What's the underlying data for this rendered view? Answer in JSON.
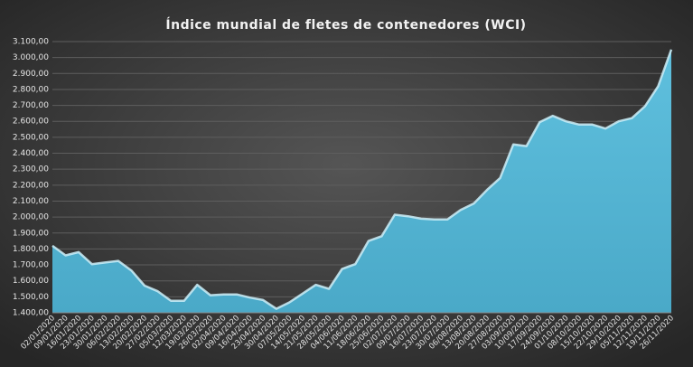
{
  "chart_data": {
    "type": "area",
    "title": "Índice mundial de fletes de contenedores (WCI)",
    "color": "#58b8d6",
    "grid": true,
    "categories": [
      "02/01/2020",
      "09/01/2020",
      "16/01/2020",
      "23/01/2020",
      "30/01/2020",
      "06/02/2020",
      "13/02/2020",
      "20/02/2020",
      "27/02/2020",
      "05/03/2020",
      "12/03/2020",
      "19/03/2020",
      "26/03/2020",
      "02/04/2020",
      "09/04/2020",
      "16/04/2020",
      "23/04/2020",
      "30/04/2020",
      "07/05/2020",
      "14/05/2020",
      "21/05/2020",
      "28/05/2020",
      "04/06/2020",
      "11/06/2020",
      "18/06/2020",
      "25/06/2020",
      "02/07/2020",
      "09/07/2020",
      "16/07/2020",
      "23/07/2020",
      "30/07/2020",
      "06/08/2020",
      "13/08/2020",
      "20/08/2020",
      "27/08/2020",
      "03/09/2020",
      "10/09/2020",
      "17/09/2020",
      "24/09/2020",
      "01/10/2020",
      "08/10/2020",
      "15/10/2020",
      "22/10/2020",
      "29/10/2020",
      "05/11/2020",
      "12/11/2020",
      "19/11/2020",
      "26/11/2020"
    ],
    "values": [
      1820,
      1760,
      1780,
      1705,
      1715,
      1725,
      1665,
      1570,
      1535,
      1475,
      1475,
      1575,
      1510,
      1515,
      1515,
      1495,
      1480,
      1425,
      1465,
      1520,
      1575,
      1550,
      1675,
      1705,
      1850,
      1880,
      2015,
      2005,
      1990,
      1985,
      1985,
      2045,
      2085,
      2170,
      2245,
      2455,
      2445,
      2595,
      2635,
      2600,
      2580,
      2580,
      2555,
      2600,
      2620,
      2695,
      2820,
      3050
    ],
    "ylim": [
      1400,
      3100
    ],
    "yticks": [
      {
        "value": 1400,
        "label": "1.400,00"
      },
      {
        "value": 1500,
        "label": "1.500,00"
      },
      {
        "value": 1600,
        "label": "1.600,00"
      },
      {
        "value": 1700,
        "label": "1.700,00"
      },
      {
        "value": 1800,
        "label": "1.800,00"
      },
      {
        "value": 1900,
        "label": "1.900,00"
      },
      {
        "value": 2000,
        "label": "2.000,00"
      },
      {
        "value": 2100,
        "label": "2.100,00"
      },
      {
        "value": 2200,
        "label": "2.200,00"
      },
      {
        "value": 2300,
        "label": "2.300,00"
      },
      {
        "value": 2400,
        "label": "2.400,00"
      },
      {
        "value": 2500,
        "label": "2.500,00"
      },
      {
        "value": 2600,
        "label": "2.600,00"
      },
      {
        "value": 2700,
        "label": "2.700,00"
      },
      {
        "value": 2800,
        "label": "2.800,00"
      },
      {
        "value": 2900,
        "label": "2.900,00"
      },
      {
        "value": 3000,
        "label": "3.000,00"
      },
      {
        "value": 3100,
        "label": "3.100,00"
      }
    ]
  }
}
